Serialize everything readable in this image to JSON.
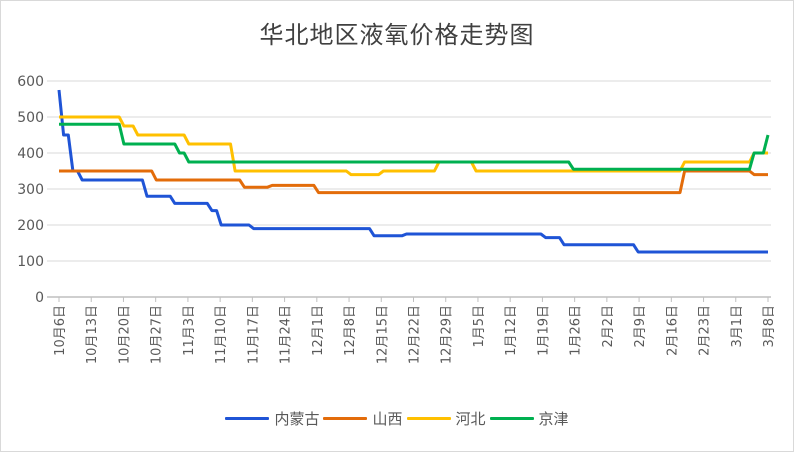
{
  "chart_data": {
    "type": "line",
    "title": "华北地区液氧价格走势图",
    "xlabel": "",
    "ylabel": "",
    "ylim": [
      0,
      600
    ],
    "yticks": [
      0,
      100,
      200,
      300,
      400,
      500,
      600
    ],
    "grid": true,
    "legend_position": "bottom",
    "x_unit": "days since 10月6日",
    "x_range_days": [
      0,
      153
    ],
    "xtick_labels": [
      "10月6日",
      "10月13日",
      "10月20日",
      "10月27日",
      "11月3日",
      "11月10日",
      "11月17日",
      "11月24日",
      "12月1日",
      "12月8日",
      "12月15日",
      "12月22日",
      "12月29日",
      "1月5日",
      "1月12日",
      "1月19日",
      "1月26日",
      "2月2日",
      "2月9日",
      "2月16日",
      "2月23日",
      "3月1日",
      "3月8日"
    ],
    "series": [
      {
        "name": "内蒙古",
        "color": "#1f54d6",
        "steps": [
          [
            0,
            575
          ],
          [
            1,
            450
          ],
          [
            3,
            350
          ],
          [
            5,
            325
          ],
          [
            19,
            280
          ],
          [
            25,
            260
          ],
          [
            33,
            240
          ],
          [
            35,
            200
          ],
          [
            42,
            190
          ],
          [
            68,
            170
          ],
          [
            75,
            175
          ],
          [
            105,
            165
          ],
          [
            109,
            145
          ],
          [
            125,
            125
          ]
        ]
      },
      {
        "name": "山西",
        "color": "#e36c0a",
        "steps": [
          [
            0,
            350
          ],
          [
            21,
            325
          ],
          [
            40,
            305
          ],
          [
            46,
            310
          ],
          [
            56,
            290
          ],
          [
            135,
            350
          ],
          [
            150,
            340
          ]
        ]
      },
      {
        "name": "河北",
        "color": "#ffc000",
        "steps": [
          [
            0,
            500
          ],
          [
            14,
            475
          ],
          [
            17,
            450
          ],
          [
            28,
            425
          ],
          [
            38,
            350
          ],
          [
            63,
            340
          ],
          [
            70,
            350
          ],
          [
            82,
            375
          ],
          [
            90,
            350
          ],
          [
            135,
            375
          ],
          [
            150,
            400
          ]
        ]
      },
      {
        "name": "京津",
        "color": "#00b050",
        "steps": [
          [
            0,
            480
          ],
          [
            14,
            425
          ],
          [
            26,
            400
          ],
          [
            28,
            375
          ],
          [
            111,
            355
          ],
          [
            150,
            400
          ],
          [
            153,
            450
          ]
        ]
      }
    ]
  }
}
